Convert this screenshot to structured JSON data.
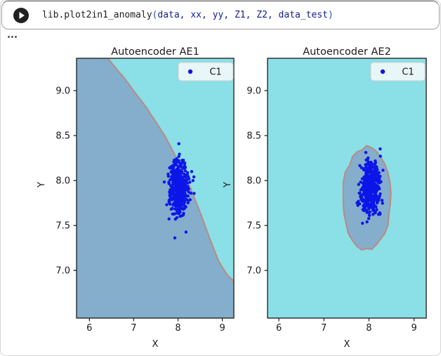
{
  "cell": {
    "run_button_tooltip": "run-cell",
    "code": {
      "function": "lib.plot2in1_anomaly",
      "paren_open": "(",
      "args": "data, xx, yy, Z1, Z2, data_test",
      "paren_close": ")"
    },
    "output_ellipsis": "⋯"
  },
  "chart_data": [
    {
      "type": "scatter",
      "title": "Autoencoder AE1",
      "xlabel": "X",
      "ylabel": "Y",
      "xlim": [
        5.71,
        9.26
      ],
      "ylim": [
        6.47,
        9.36
      ],
      "xticks": [
        6,
        7,
        8,
        9
      ],
      "yticks": [
        9.0,
        8.5,
        8.0,
        7.5,
        7.0
      ],
      "xtick_labels": [
        "6",
        "7",
        "8",
        "9"
      ],
      "ytick_labels": [
        "9.0",
        "8.5",
        "8.0",
        "7.5",
        "7.0"
      ],
      "legend": {
        "label": "C1",
        "position": "upper right"
      },
      "colors": {
        "outlier_region": "#8bdfe6",
        "inlier_region": "#84aecb",
        "boundary": "#ba8a85",
        "points": "#0d16e8"
      },
      "decision_boundary": {
        "shape": "open-curve",
        "points_xy": [
          [
            6.42,
            9.36
          ],
          [
            6.85,
            9.1
          ],
          [
            7.3,
            8.8
          ],
          [
            7.7,
            8.5
          ],
          [
            8.02,
            8.2
          ],
          [
            8.28,
            7.92
          ],
          [
            8.52,
            7.62
          ],
          [
            8.72,
            7.35
          ],
          [
            8.92,
            7.1
          ],
          [
            9.1,
            6.96
          ],
          [
            9.26,
            6.88
          ]
        ],
        "inlier_side": "lower-left"
      },
      "cluster": {
        "name": "C1",
        "center": [
          8.02,
          7.93
        ],
        "std": [
          0.105,
          0.15
        ],
        "n": 480,
        "seed": 7
      }
    },
    {
      "type": "scatter",
      "title": "Autoencoder AE2",
      "xlabel": "X",
      "ylabel": "Y",
      "xlim": [
        5.75,
        9.27
      ],
      "ylim": [
        6.47,
        9.36
      ],
      "xticks": [
        6,
        7,
        8,
        9
      ],
      "yticks": [
        9.0,
        8.5,
        8.0,
        7.5,
        7.0
      ],
      "xtick_labels": [
        "6",
        "7",
        "8",
        "9"
      ],
      "ytick_labels": [
        "9.0",
        "8.5",
        "8.0",
        "7.5",
        "7.0"
      ],
      "legend": {
        "label": "C1",
        "position": "upper right"
      },
      "colors": {
        "outlier_region": "#8bdfe6",
        "inlier_region": "#84aecb",
        "boundary": "#ba8a85",
        "points": "#0d16e8"
      },
      "decision_boundary": {
        "shape": "closed-blob",
        "center": [
          7.95,
          7.8
        ],
        "rx": 0.53,
        "ry": 0.57,
        "inlier_side": "inside"
      },
      "cluster": {
        "name": "C1",
        "center": [
          8.02,
          7.92
        ],
        "std": [
          0.1,
          0.14
        ],
        "n": 480,
        "seed": 11
      }
    }
  ]
}
